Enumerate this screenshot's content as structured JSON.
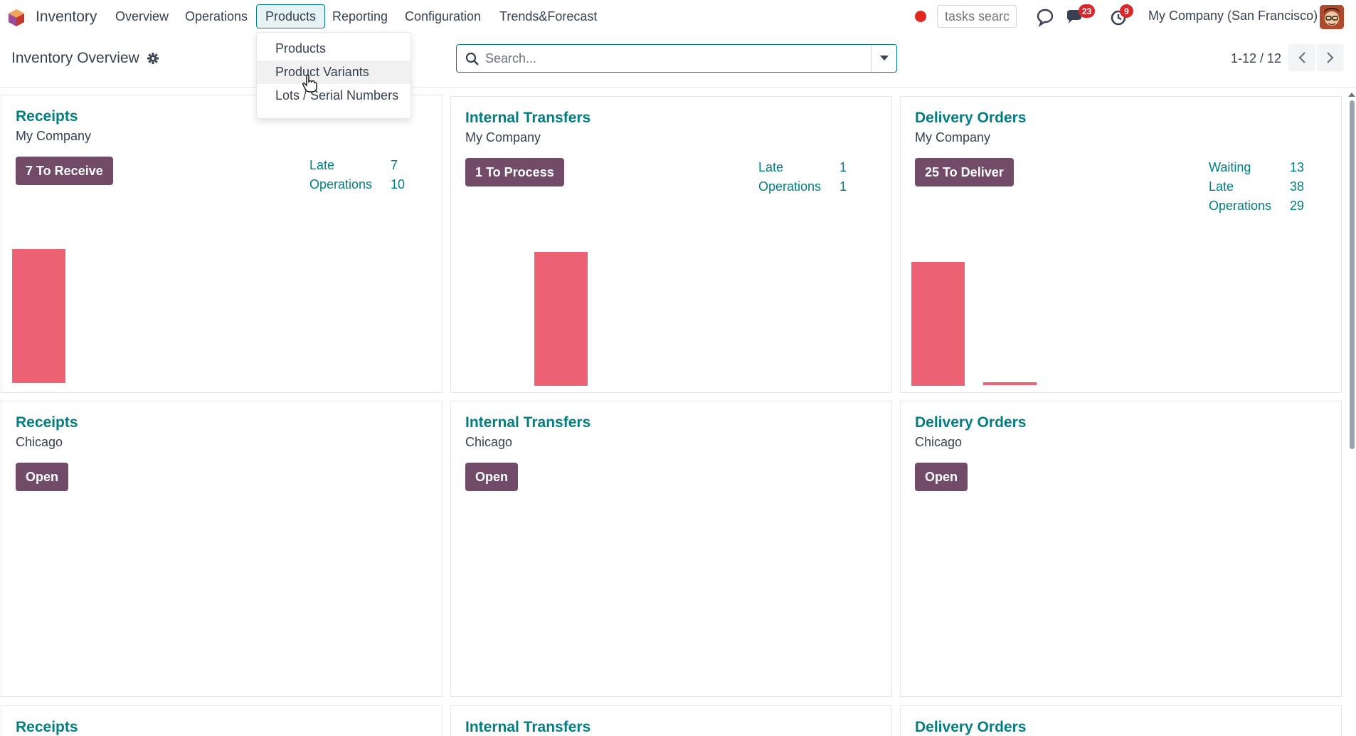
{
  "navbar": {
    "app_name": "Inventory",
    "menus": [
      "Overview",
      "Operations",
      "Products",
      "Reporting",
      "Configuration",
      "Trends&Forecast"
    ],
    "active_menu": "Products",
    "task_search_placeholder": "tasks search",
    "messages_badge": "23",
    "activities_badge": "9",
    "company": "My Company (San Francisco)"
  },
  "breadcrumb": {
    "title": "Inventory Overview"
  },
  "search": {
    "placeholder": "Search..."
  },
  "pager": {
    "text": "1-12 / 12"
  },
  "dropdown": {
    "items": [
      "Products",
      "Product Variants",
      "Lots / Serial Numbers"
    ],
    "hovered": "Product Variants"
  },
  "cards": [
    {
      "title": "Receipts",
      "subtitle": "My Company",
      "button": "7 To Receive",
      "stats": [
        {
          "label": "Late",
          "value": "7"
        },
        {
          "label": "Operations",
          "value": "10"
        }
      ]
    },
    {
      "title": "Internal Transfers",
      "subtitle": "My Company",
      "button": "1 To Process",
      "stats": [
        {
          "label": "Late",
          "value": "1"
        },
        {
          "label": "Operations",
          "value": "1"
        }
      ]
    },
    {
      "title": "Delivery Orders",
      "subtitle": "My Company",
      "button": "25 To Deliver",
      "stats": [
        {
          "label": "Waiting",
          "value": "13"
        },
        {
          "label": "Late",
          "value": "38"
        },
        {
          "label": "Operations",
          "value": "29"
        }
      ]
    },
    {
      "title": "Receipts",
      "subtitle": "Chicago",
      "button": "Open",
      "stats": []
    },
    {
      "title": "Internal Transfers",
      "subtitle": "Chicago",
      "button": "Open",
      "stats": []
    },
    {
      "title": "Delivery Orders",
      "subtitle": "Chicago",
      "button": "Open",
      "stats": []
    },
    {
      "title": "Receipts",
      "subtitle": "",
      "button": "",
      "stats": []
    },
    {
      "title": "Internal Transfers",
      "subtitle": "",
      "button": "",
      "stats": []
    },
    {
      "title": "Delivery Orders",
      "subtitle": "",
      "button": "",
      "stats": []
    }
  ],
  "colors": {
    "accent": "#017e84",
    "primary_button": "#714b67",
    "bar": "#ec6173",
    "badge": "#d9272e"
  }
}
